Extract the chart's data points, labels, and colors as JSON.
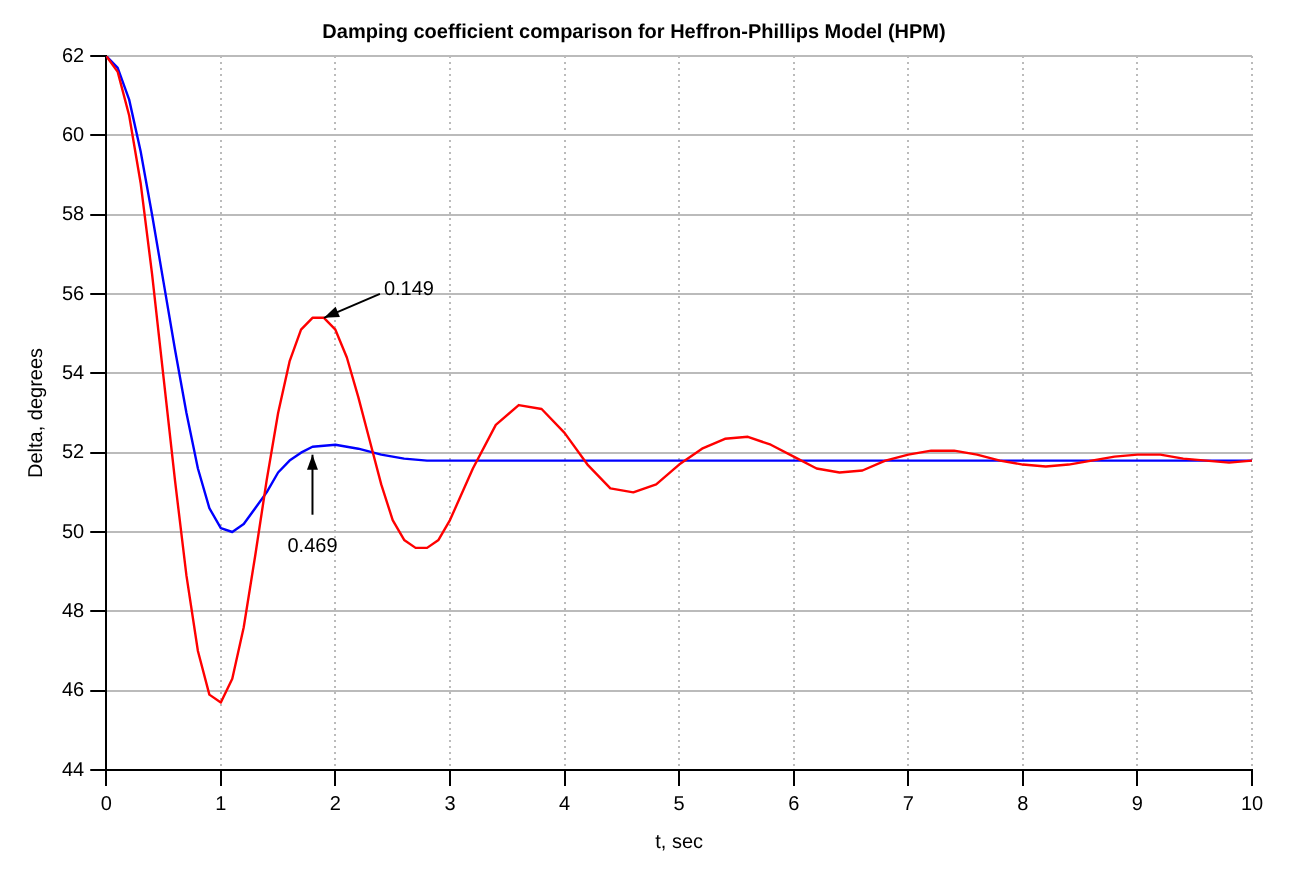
{
  "chart_data": {
    "type": "line",
    "title": "Damping coefficient comparison for Heffron-Phillips Model (HPM)",
    "xlabel": "t, sec",
    "ylabel": "Delta, degrees",
    "xlim": [
      0,
      10
    ],
    "xticks": [
      0,
      1,
      2,
      3,
      4,
      5,
      6,
      7,
      8,
      9,
      10
    ],
    "ylim": [
      44,
      62
    ],
    "yticks": [
      44,
      46,
      48,
      50,
      52,
      54,
      56,
      58,
      60,
      62
    ],
    "grid": true,
    "line_style": "solid",
    "marker": "none",
    "annotations": [
      {
        "text": "0.149",
        "x": 1.9,
        "y": 55.4
      },
      {
        "text": "0.469",
        "x": 1.8,
        "y": 52.15
      }
    ],
    "series": [
      {
        "color": "#ff0000",
        "x": [
          0,
          0.1,
          0.2,
          0.3,
          0.4,
          0.5,
          0.6,
          0.7,
          0.8,
          0.9,
          1.0,
          1.1,
          1.2,
          1.3,
          1.4,
          1.5,
          1.6,
          1.7,
          1.8,
          1.9,
          2.0,
          2.1,
          2.2,
          2.3,
          2.4,
          2.5,
          2.6,
          2.7,
          2.8,
          2.9,
          3.0,
          3.2,
          3.4,
          3.6,
          3.8,
          4.0,
          4.2,
          4.4,
          4.6,
          4.8,
          5.0,
          5.2,
          5.4,
          5.6,
          5.8,
          6.0,
          6.2,
          6.4,
          6.6,
          6.8,
          7.0,
          7.2,
          7.4,
          7.6,
          7.8,
          8.0,
          8.2,
          8.4,
          8.6,
          8.8,
          9.0,
          9.2,
          9.4,
          9.6,
          9.8,
          10
        ],
        "values": [
          62,
          61.6,
          60.5,
          58.8,
          56.5,
          53.9,
          51.3,
          48.9,
          47.0,
          45.9,
          45.7,
          46.3,
          47.6,
          49.4,
          51.3,
          53.0,
          54.3,
          55.1,
          55.4,
          55.4,
          55.1,
          54.4,
          53.4,
          52.3,
          51.2,
          50.3,
          49.8,
          49.6,
          49.6,
          49.8,
          50.3,
          51.6,
          52.7,
          53.2,
          53.1,
          52.5,
          51.7,
          51.1,
          51.0,
          51.2,
          51.7,
          52.1,
          52.35,
          52.4,
          52.2,
          51.9,
          51.6,
          51.5,
          51.55,
          51.8,
          51.95,
          52.05,
          52.05,
          51.95,
          51.8,
          51.7,
          51.65,
          51.7,
          51.8,
          51.9,
          51.95,
          51.95,
          51.85,
          51.8,
          51.75,
          51.8
        ]
      },
      {
        "color": "#0000ff",
        "x": [
          0,
          0.1,
          0.2,
          0.3,
          0.4,
          0.5,
          0.6,
          0.7,
          0.8,
          0.9,
          1.0,
          1.1,
          1.2,
          1.3,
          1.4,
          1.5,
          1.6,
          1.7,
          1.8,
          2.0,
          2.2,
          2.4,
          2.6,
          2.8,
          3.0,
          4,
          5,
          6,
          7,
          8,
          9,
          10
        ],
        "values": [
          62,
          61.7,
          60.9,
          59.6,
          58.0,
          56.3,
          54.6,
          53.0,
          51.6,
          50.6,
          50.1,
          50.0,
          50.2,
          50.6,
          51.0,
          51.5,
          51.8,
          52.0,
          52.15,
          52.2,
          52.1,
          51.95,
          51.85,
          51.8,
          51.8,
          51.8,
          51.8,
          51.8,
          51.8,
          51.8,
          51.8,
          51.8
        ]
      }
    ]
  }
}
